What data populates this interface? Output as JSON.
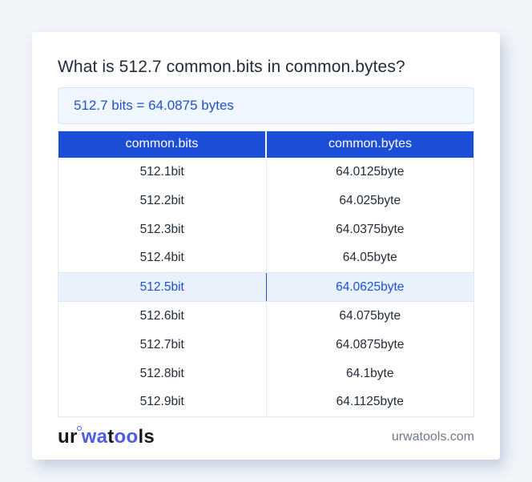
{
  "page": {
    "title": "What is 512.7 common.bits in common.bytes?",
    "result_text": "512.7 bits = 64.0875 bytes"
  },
  "table": {
    "headers": [
      "common.bits",
      "common.bytes"
    ],
    "rows": [
      {
        "bits": "512.1bit",
        "bytes": "64.0125byte",
        "highlight": false
      },
      {
        "bits": "512.2bit",
        "bytes": "64.025byte",
        "highlight": false
      },
      {
        "bits": "512.3bit",
        "bytes": "64.0375byte",
        "highlight": false
      },
      {
        "bits": "512.4bit",
        "bytes": "64.05byte",
        "highlight": false
      },
      {
        "bits": "512.5bit",
        "bytes": "64.0625byte",
        "highlight": true
      },
      {
        "bits": "512.6bit",
        "bytes": "64.075byte",
        "highlight": false
      },
      {
        "bits": "512.7bit",
        "bytes": "64.0875byte",
        "highlight": false
      },
      {
        "bits": "512.8bit",
        "bytes": "64.1byte",
        "highlight": false
      },
      {
        "bits": "512.9bit",
        "bytes": "64.1125byte",
        "highlight": false
      }
    ]
  },
  "footer": {
    "logo": {
      "part1": "ur",
      "part2": "wa",
      "part3": "t",
      "part4": "oo",
      "part5": "ls"
    },
    "domain": "urwatools.com"
  },
  "colors": {
    "accent_blue": "#1d4ed8",
    "result_box_bg": "#eff6ff",
    "result_text": "#2152c4",
    "highlight_row_bg": "#e8f1fc",
    "page_bg": "#f1f4f9",
    "card_bg": "#ffffff",
    "title_text": "#222c3a",
    "cell_text": "#222c38",
    "domain_text": "#6e7889",
    "logo_blue": "#4d5ce6",
    "table_border": "#e6e9ef"
  }
}
